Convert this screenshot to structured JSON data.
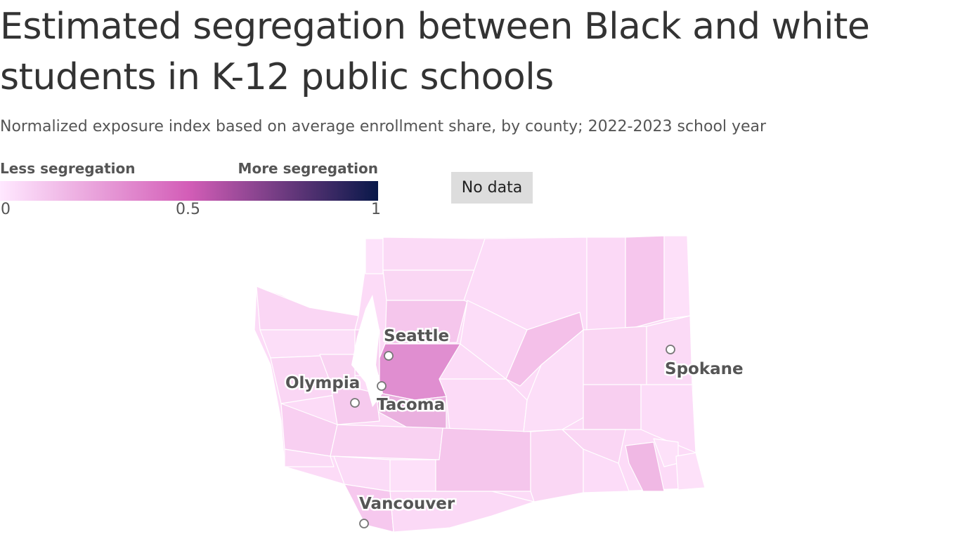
{
  "title": "Estimated segregation between Black and white students in K-12 public schools",
  "subtitle": "Normalized exposure index based on average enrollment share, by county; 2022-2023 school year",
  "legend": {
    "low_label": "Less segregation",
    "high_label": "More segregation",
    "ticks": [
      "0",
      "0.5",
      "1"
    ],
    "scale": {
      "min": 0,
      "mid": 0.5,
      "max": 1
    },
    "colors": [
      "#ffe8ff",
      "#d35db7",
      "#081849"
    ],
    "no_data_label": "No data",
    "no_data_color": "#dddddd"
  },
  "cities": [
    {
      "name": "Seattle"
    },
    {
      "name": "Tacoma"
    },
    {
      "name": "Olympia"
    },
    {
      "name": "Spokane"
    },
    {
      "name": "Vancouver"
    }
  ]
}
